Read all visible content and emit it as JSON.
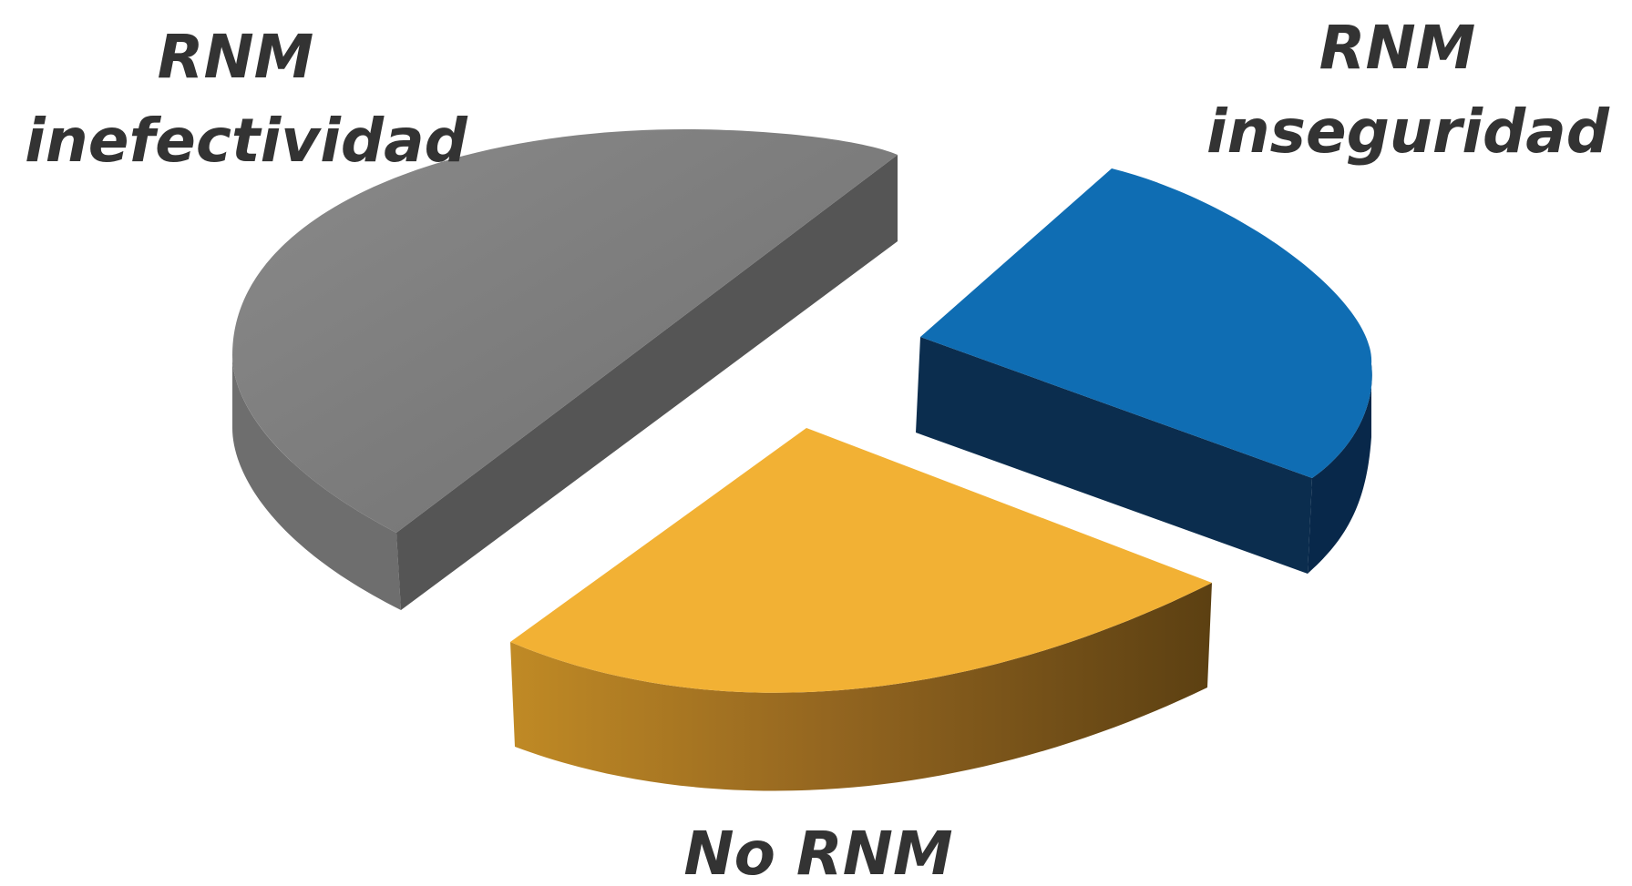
{
  "chart_data": {
    "type": "pie",
    "style": "3d-exploded",
    "legend": "none",
    "slices": [
      {
        "label_lines": [
          "RNM",
          "inefectividad"
        ],
        "value": 50,
        "color": "#7f7f7f"
      },
      {
        "label_lines": [
          "RNM",
          "inseguridad"
        ],
        "value": 25,
        "color": "#0f6db3"
      },
      {
        "label_lines": [
          "No RNM"
        ],
        "value": 25,
        "color": "#f2b134"
      }
    ]
  }
}
